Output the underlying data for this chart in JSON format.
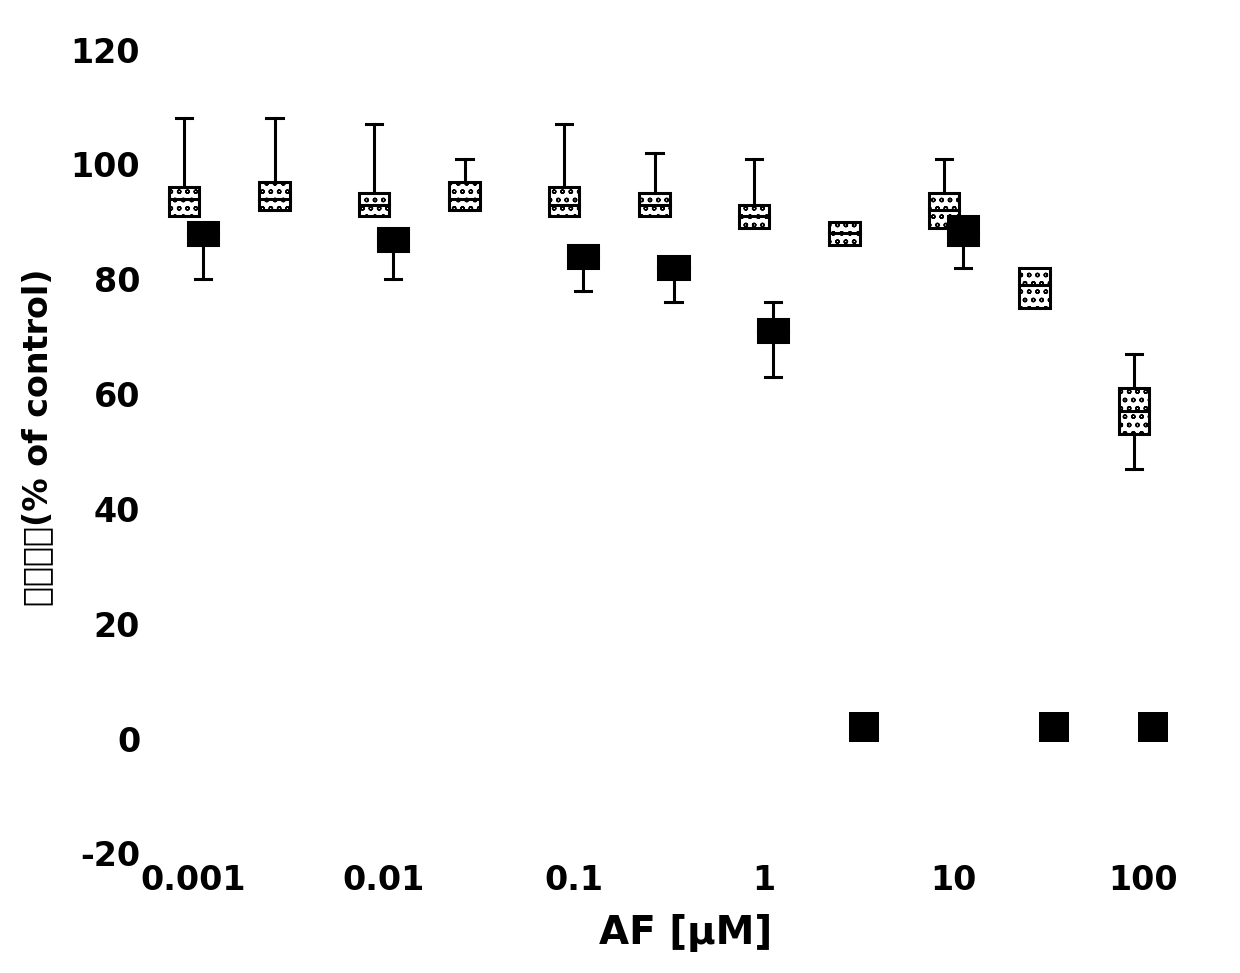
{
  "xlabel": "AF [μM]",
  "ylabel": "细胞存活(% of control)",
  "ylim": [
    -20,
    125
  ],
  "yticks": [
    -20,
    0,
    20,
    40,
    60,
    80,
    100,
    120
  ],
  "background_color": "#ffffff",
  "concentrations": [
    0.001,
    0.003,
    0.01,
    0.03,
    0.1,
    0.3,
    1,
    3,
    10,
    30,
    100
  ],
  "series1": {
    "medians": [
      94,
      94,
      93,
      94,
      93,
      93,
      91,
      88,
      92,
      79,
      57
    ],
    "q1": [
      91,
      92,
      91,
      92,
      91,
      91,
      89,
      86,
      89,
      75,
      53
    ],
    "q3": [
      96,
      97,
      95,
      97,
      96,
      95,
      93,
      90,
      95,
      82,
      61
    ],
    "whislo": [
      null,
      null,
      null,
      null,
      null,
      null,
      null,
      null,
      null,
      null,
      47
    ],
    "whishi": [
      108,
      108,
      107,
      101,
      107,
      102,
      101,
      null,
      101,
      null,
      67
    ]
  },
  "series2": {
    "medians": [
      88,
      null,
      87,
      null,
      84,
      82,
      71,
      2,
      88,
      2,
      2
    ],
    "q1": [
      86,
      null,
      85,
      null,
      82,
      80,
      69,
      2,
      86,
      2,
      2
    ],
    "q3": [
      90,
      null,
      89,
      null,
      86,
      84,
      73,
      2,
      91,
      2,
      2
    ],
    "whislo": [
      80,
      null,
      80,
      null,
      78,
      76,
      63,
      null,
      82,
      null,
      null
    ],
    "whishi": [
      null,
      null,
      null,
      null,
      null,
      null,
      76,
      null,
      null,
      null,
      null
    ]
  },
  "x_tick_labels": [
    "0.001",
    "0.01",
    "0.1",
    "1",
    "10",
    "100"
  ],
  "x_tick_positions": [
    0.001,
    0.01,
    0.1,
    1,
    10,
    100
  ]
}
